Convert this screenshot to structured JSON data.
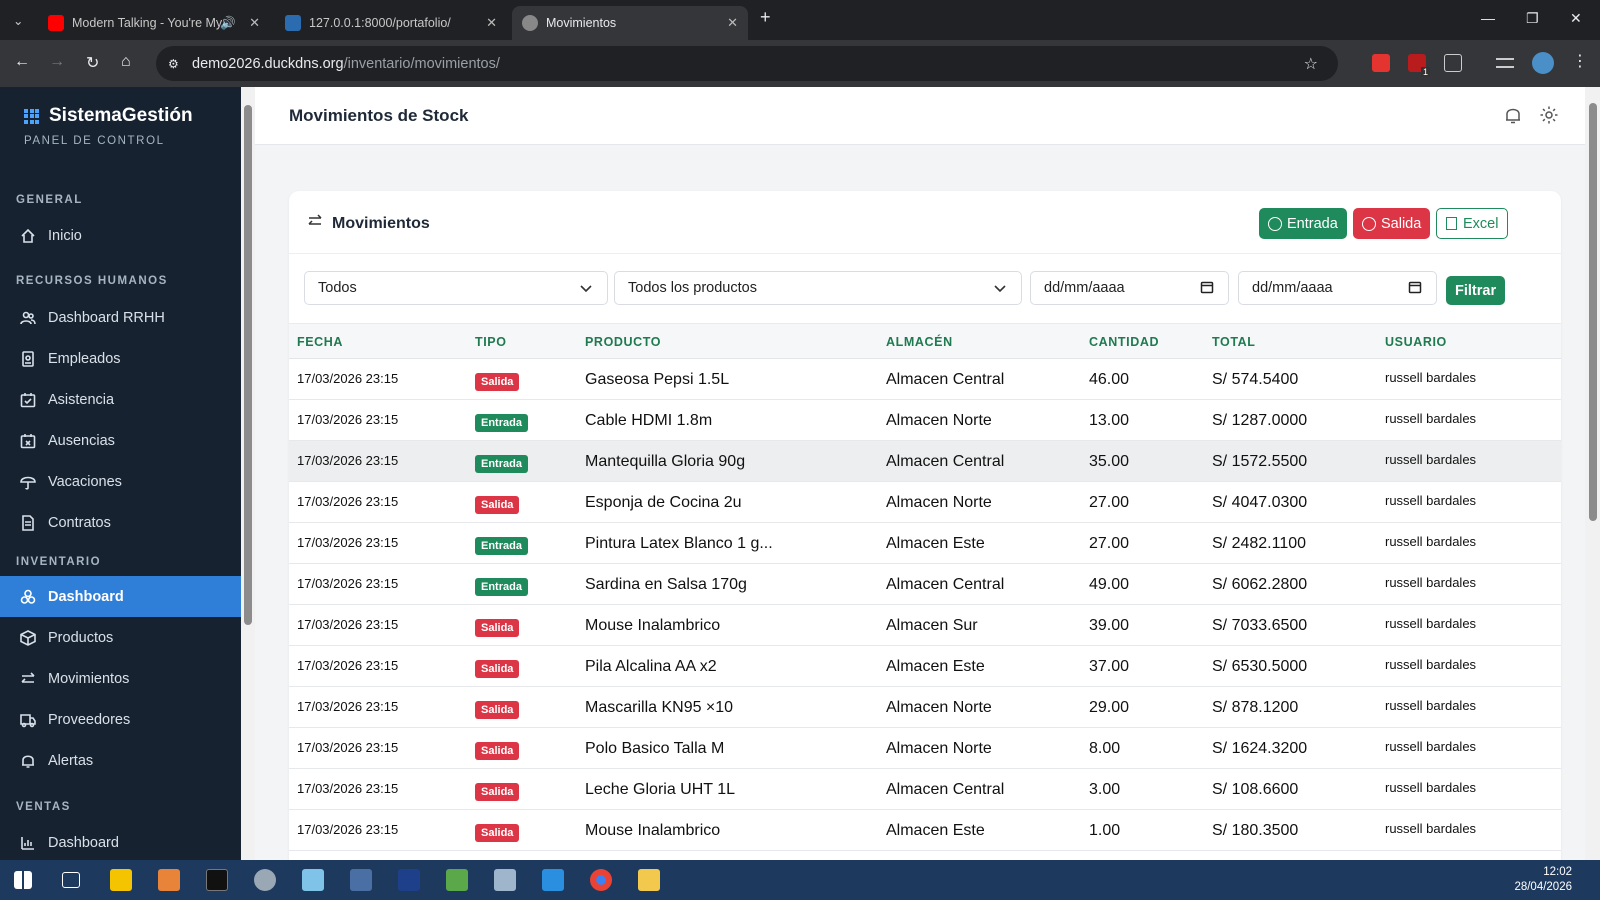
{
  "browser": {
    "tabs": [
      {
        "title": "Modern Talking - You're My",
        "active": false
      },
      {
        "title": "127.0.0.1:8000/portafolio/",
        "active": false
      },
      {
        "title": "Movimientos",
        "active": true
      }
    ],
    "new_tab": "+",
    "url_host": "demo2026.duckdns.org",
    "url_path": "/inventario/movimientos/",
    "ext_badge": "1"
  },
  "sidebar": {
    "brand": "SistemaGestión",
    "subtitle": "PANEL DE CONTROL",
    "sections": [
      {
        "label": "GENERAL",
        "items": [
          {
            "label": "Inicio",
            "icon": "home-icon"
          }
        ]
      },
      {
        "label": "RECURSOS HUMANOS",
        "items": [
          {
            "label": "Dashboard RRHH",
            "icon": "people-icon"
          },
          {
            "label": "Empleados",
            "icon": "badge-icon"
          },
          {
            "label": "Asistencia",
            "icon": "calendar-check-icon"
          },
          {
            "label": "Ausencias",
            "icon": "calendar-x-icon"
          },
          {
            "label": "Vacaciones",
            "icon": "umbrella-icon"
          },
          {
            "label": "Contratos",
            "icon": "document-icon"
          }
        ]
      },
      {
        "label": "INVENTARIO",
        "items": [
          {
            "label": "Dashboard",
            "icon": "boxes-icon",
            "active": true
          },
          {
            "label": "Productos",
            "icon": "box-icon"
          },
          {
            "label": "Movimientos",
            "icon": "arrows-icon"
          },
          {
            "label": "Proveedores",
            "icon": "truck-icon"
          },
          {
            "label": "Alertas",
            "icon": "bell-icon"
          }
        ]
      },
      {
        "label": "VENTAS",
        "items": [
          {
            "label": "Dashboard",
            "icon": "chart-icon"
          }
        ]
      }
    ]
  },
  "header": {
    "title": "Movimientos de Stock"
  },
  "card": {
    "title": "Movimientos",
    "buttons": {
      "entrada": "Entrada",
      "salida": "Salida",
      "excel": "Excel"
    },
    "filters": {
      "tipo": "Todos",
      "producto": "Todos los productos",
      "fecha_desde": "dd/mm/aaaa",
      "fecha_hasta": "dd/mm/aaaa",
      "submit": "Filtrar"
    },
    "columns": [
      "FECHA",
      "TIPO",
      "PRODUCTO",
      "ALMACÉN",
      "CANTIDAD",
      "TOTAL",
      "USUARIO"
    ],
    "rows": [
      {
        "fecha": "17/03/2026 23:15",
        "tipo": "Salida",
        "producto": "Gaseosa Pepsi 1.5L",
        "almacen": "Almacen Central",
        "cantidad": "46.00",
        "total": "S/ 574.5400",
        "usuario": "russell bardales"
      },
      {
        "fecha": "17/03/2026 23:15",
        "tipo": "Entrada",
        "producto": "Cable HDMI 1.8m",
        "almacen": "Almacen Norte",
        "cantidad": "13.00",
        "total": "S/ 1287.0000",
        "usuario": "russell bardales"
      },
      {
        "fecha": "17/03/2026 23:15",
        "tipo": "Entrada",
        "producto": "Mantequilla Gloria 90g",
        "almacen": "Almacen Central",
        "cantidad": "35.00",
        "total": "S/ 1572.5500",
        "usuario": "russell bardales"
      },
      {
        "fecha": "17/03/2026 23:15",
        "tipo": "Salida",
        "producto": "Esponja de Cocina 2u",
        "almacen": "Almacen Norte",
        "cantidad": "27.00",
        "total": "S/ 4047.0300",
        "usuario": "russell bardales"
      },
      {
        "fecha": "17/03/2026 23:15",
        "tipo": "Entrada",
        "producto": "Pintura Latex Blanco 1 g...",
        "almacen": "Almacen Este",
        "cantidad": "27.00",
        "total": "S/ 2482.1100",
        "usuario": "russell bardales"
      },
      {
        "fecha": "17/03/2026 23:15",
        "tipo": "Entrada",
        "producto": "Sardina en Salsa 170g",
        "almacen": "Almacen Central",
        "cantidad": "49.00",
        "total": "S/ 6062.2800",
        "usuario": "russell bardales"
      },
      {
        "fecha": "17/03/2026 23:15",
        "tipo": "Salida",
        "producto": "Mouse Inalambrico",
        "almacen": "Almacen Sur",
        "cantidad": "39.00",
        "total": "S/ 7033.6500",
        "usuario": "russell bardales"
      },
      {
        "fecha": "17/03/2026 23:15",
        "tipo": "Salida",
        "producto": "Pila Alcalina AA x2",
        "almacen": "Almacen Este",
        "cantidad": "37.00",
        "total": "S/ 6530.5000",
        "usuario": "russell bardales"
      },
      {
        "fecha": "17/03/2026 23:15",
        "tipo": "Salida",
        "producto": "Mascarilla KN95 ×10",
        "almacen": "Almacen Norte",
        "cantidad": "29.00",
        "total": "S/ 878.1200",
        "usuario": "russell bardales"
      },
      {
        "fecha": "17/03/2026 23:15",
        "tipo": "Salida",
        "producto": "Polo Basico Talla M",
        "almacen": "Almacen Norte",
        "cantidad": "8.00",
        "total": "S/ 1624.3200",
        "usuario": "russell bardales"
      },
      {
        "fecha": "17/03/2026 23:15",
        "tipo": "Salida",
        "producto": "Leche Gloria UHT 1L",
        "almacen": "Almacen Central",
        "cantidad": "3.00",
        "total": "S/ 108.6600",
        "usuario": "russell bardales"
      },
      {
        "fecha": "17/03/2026 23:15",
        "tipo": "Salida",
        "producto": "Mouse Inalambrico",
        "almacen": "Almacen Este",
        "cantidad": "1.00",
        "total": "S/ 180.3500",
        "usuario": "russell bardales"
      }
    ]
  },
  "taskbar": {
    "time": "12:02",
    "date": "28/04/2026"
  },
  "colors": {
    "sidebar_bg": "#162230",
    "active_item": "#2f7fd8",
    "entrada": "#1f8a5b",
    "salida": "#dc3545",
    "header_green": "#1f7a50"
  }
}
